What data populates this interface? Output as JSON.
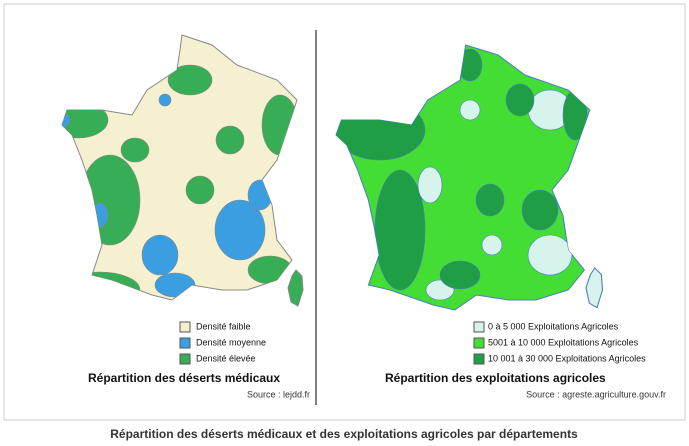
{
  "left": {
    "legend": [
      {
        "label": "Densité faible",
        "color": "#f4f0d0"
      },
      {
        "label": "Densité moyenne",
        "color": "#3a9ee0"
      },
      {
        "label": "Densité élevée",
        "color": "#37ad55"
      }
    ],
    "title": "Répartition des déserts médicaux",
    "source": "Source : lejdd.fr"
  },
  "right": {
    "legend": [
      {
        "label": "0 à 5 000 Exploitations Agricoles",
        "color": "#d6f4ec"
      },
      {
        "label": "5001 à 10 000 Exploitations Agricoles",
        "color": "#44dd33"
      },
      {
        "label": "10 001 à 30 000 Exploitations Agricoles",
        "color": "#1f9e45"
      }
    ],
    "title": "Répartition des exploitations agricoles",
    "source": "Source : agreste.agriculture.gouv.fr"
  },
  "caption": "Répartition des déserts médicaux et des exploitations agricoles par départements"
}
